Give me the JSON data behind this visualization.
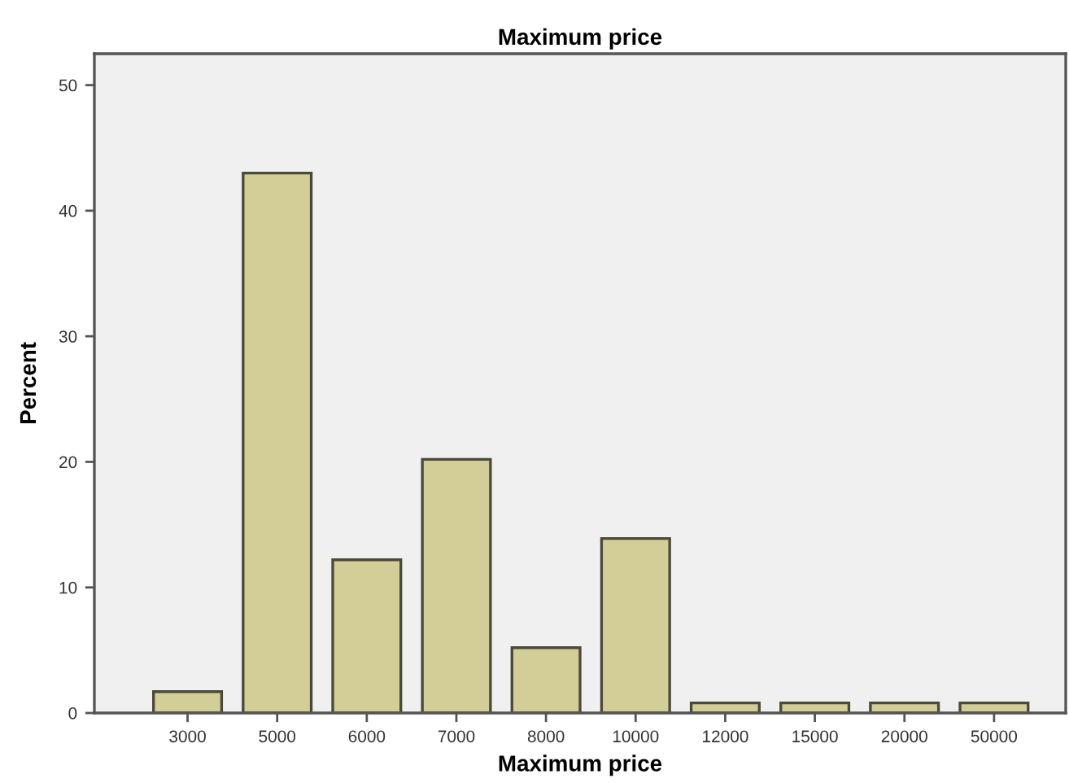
{
  "chart_data": {
    "type": "bar",
    "title": "Maximum price",
    "xlabel": "Maximum price",
    "ylabel": "Percent",
    "categories": [
      "3000",
      "5000",
      "6000",
      "7000",
      "8000",
      "10000",
      "12000",
      "15000",
      "20000",
      "50000"
    ],
    "values": [
      1.7,
      43.0,
      12.2,
      20.2,
      5.2,
      13.9,
      0.8,
      0.8,
      0.8,
      0.8
    ],
    "color": "#d3ce97",
    "ylim": [
      0,
      52.5
    ],
    "yticks": [
      0,
      10,
      20,
      30,
      40,
      50
    ],
    "grid": false,
    "legend": false
  }
}
